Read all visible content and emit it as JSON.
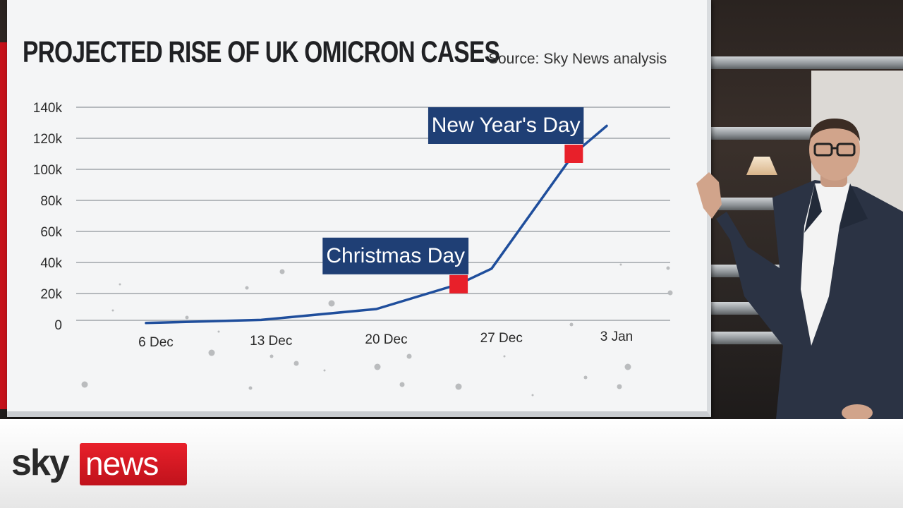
{
  "chart_data": {
    "type": "line",
    "title": "PROJECTED RISE OF UK OMICRON CASES",
    "source": "Source: Sky News analysis",
    "y_ticks": [
      "0",
      "20k",
      "40k",
      "60k",
      "80k",
      "100k",
      "120k",
      "140k"
    ],
    "ylim": [
      0,
      140000
    ],
    "x_ticks": [
      "6 Dec",
      "13 Dec",
      "20 Dec",
      "27 Dec",
      "3 Jan"
    ],
    "grid": true,
    "series": [
      {
        "color": "#1f4e9c",
        "x": [
          "2021-12-06",
          "2021-12-13",
          "2021-12-20",
          "2021-12-25",
          "2021-12-27",
          "2022-01-01",
          "2022-01-03"
        ],
        "y": [
          1000,
          3000,
          10000,
          26000,
          36000,
          110000,
          128000
        ]
      }
    ],
    "annotations": [
      {
        "label": "Christmas Day",
        "x": "2021-12-25",
        "y": 26000
      },
      {
        "label": "New Year's Day",
        "x": "2022-01-01",
        "y": 110000
      }
    ]
  },
  "colors": {
    "line": "#1f4e9c",
    "annotation_box": "#1f3f75",
    "marker": "#e8202a",
    "grid": "#b5b9bd"
  },
  "branding": {
    "sky": "sky",
    "news": "news"
  }
}
